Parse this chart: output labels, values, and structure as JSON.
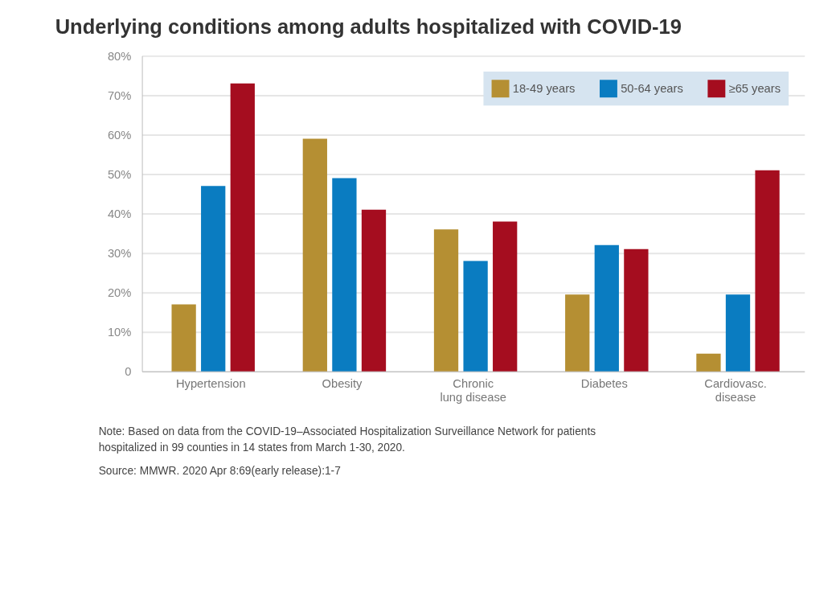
{
  "chart_data": {
    "type": "bar",
    "title": "Underlying conditions among adults hospitalized with COVID-19",
    "categories": [
      "Hypertension",
      "Obesity",
      "Chronic lung disease",
      "Diabetes",
      "Cardiovasc. disease"
    ],
    "series": [
      {
        "name": "18-49 years",
        "color": "#b58f33",
        "values": [
          17,
          59,
          36,
          19.5,
          4.5
        ]
      },
      {
        "name": "50-64 years",
        "color": "#0a7cc1",
        "values": [
          47,
          49,
          28,
          32,
          19.5
        ]
      },
      {
        "name": "≥65 years",
        "color": "#a50d1f",
        "values": [
          73,
          41,
          38,
          31,
          51
        ]
      }
    ],
    "ylim": [
      0,
      80
    ],
    "yticks": [
      0,
      {
        "value": 10,
        "label": "10%"
      },
      {
        "value": 20,
        "label": "20%"
      },
      {
        "value": 30,
        "label": "30%"
      },
      {
        "value": 40,
        "label": "40%"
      },
      {
        "value": 50,
        "label": "50%"
      },
      {
        "value": 60,
        "label": "60%"
      },
      {
        "value": 70,
        "label": "70%"
      },
      {
        "value": 80,
        "label": "80%"
      }
    ],
    "grid": "y",
    "legend": "top right",
    "annotations": [
      "Note: Based on data from the COVID-19–Associated Hospitalization Surveillance Network for patients hospitalized in 99 counties in 14 states from March 1-30, 2020.",
      "Source: MMWR. 2020 Apr 8:69(early release):1-7"
    ]
  }
}
